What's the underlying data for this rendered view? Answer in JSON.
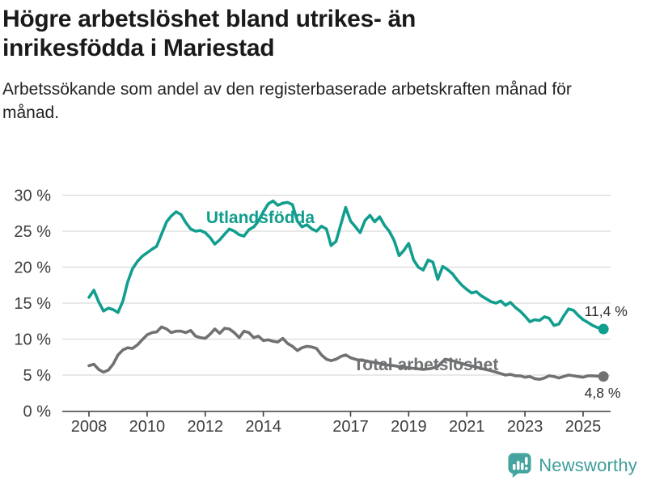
{
  "header": {
    "title_lines": [
      "Högre arbetslöshet bland utrikes- än",
      "inrikesfödda i Mariestad"
    ],
    "subtitle": "Arbetssökande som andel av den registerbaserade arbetskraften månad för månad."
  },
  "chart_data": {
    "type": "line",
    "unit": "%",
    "x_axis": {
      "tick_years": [
        2008,
        2010,
        2012,
        2014,
        2017,
        2019,
        2021,
        2023,
        2025
      ],
      "range": [
        2007.1,
        2025.95
      ]
    },
    "y_axis": {
      "ticks": [
        0,
        5,
        10,
        15,
        20,
        25,
        30
      ],
      "tick_suffix": " %",
      "range": [
        0,
        30
      ],
      "gridlines": true
    },
    "series": [
      {
        "name": "Utlandsfödda",
        "color": "#119e8e",
        "end_label": "11,4 %",
        "points": [
          [
            2008.0,
            15.8
          ],
          [
            2008.17,
            16.8
          ],
          [
            2008.33,
            15.2
          ],
          [
            2008.5,
            13.9
          ],
          [
            2008.67,
            14.3
          ],
          [
            2008.83,
            14.1
          ],
          [
            2009.0,
            13.7
          ],
          [
            2009.17,
            15.3
          ],
          [
            2009.33,
            17.9
          ],
          [
            2009.5,
            19.8
          ],
          [
            2009.67,
            20.8
          ],
          [
            2009.83,
            21.5
          ],
          [
            2010.0,
            22.0
          ],
          [
            2010.17,
            22.5
          ],
          [
            2010.33,
            22.9
          ],
          [
            2010.5,
            24.6
          ],
          [
            2010.67,
            26.3
          ],
          [
            2010.83,
            27.1
          ],
          [
            2011.0,
            27.7
          ],
          [
            2011.17,
            27.3
          ],
          [
            2011.33,
            26.2
          ],
          [
            2011.5,
            25.3
          ],
          [
            2011.67,
            25.0
          ],
          [
            2011.83,
            25.1
          ],
          [
            2012.0,
            24.8
          ],
          [
            2012.17,
            24.1
          ],
          [
            2012.33,
            23.2
          ],
          [
            2012.5,
            23.8
          ],
          [
            2012.67,
            24.6
          ],
          [
            2012.83,
            25.3
          ],
          [
            2013.0,
            25.0
          ],
          [
            2013.17,
            24.5
          ],
          [
            2013.33,
            24.3
          ],
          [
            2013.5,
            25.2
          ],
          [
            2013.67,
            25.6
          ],
          [
            2013.83,
            26.4
          ],
          [
            2014.0,
            27.7
          ],
          [
            2014.17,
            28.8
          ],
          [
            2014.33,
            29.2
          ],
          [
            2014.5,
            28.6
          ],
          [
            2014.67,
            28.9
          ],
          [
            2014.83,
            29.0
          ],
          [
            2015.0,
            28.7
          ],
          [
            2015.17,
            26.4
          ],
          [
            2015.33,
            25.6
          ],
          [
            2015.5,
            25.9
          ],
          [
            2015.67,
            25.3
          ],
          [
            2015.83,
            25.0
          ],
          [
            2016.0,
            25.7
          ],
          [
            2016.17,
            25.3
          ],
          [
            2016.33,
            23.0
          ],
          [
            2016.5,
            23.6
          ],
          [
            2016.67,
            26.0
          ],
          [
            2016.83,
            28.3
          ],
          [
            2017.0,
            26.4
          ],
          [
            2017.17,
            25.6
          ],
          [
            2017.33,
            24.8
          ],
          [
            2017.5,
            26.5
          ],
          [
            2017.67,
            27.2
          ],
          [
            2017.83,
            26.3
          ],
          [
            2018.0,
            27.0
          ],
          [
            2018.17,
            25.8
          ],
          [
            2018.33,
            25.0
          ],
          [
            2018.5,
            23.7
          ],
          [
            2018.67,
            21.6
          ],
          [
            2018.83,
            22.3
          ],
          [
            2019.0,
            23.3
          ],
          [
            2019.17,
            21.0
          ],
          [
            2019.33,
            20.0
          ],
          [
            2019.5,
            19.6
          ],
          [
            2019.67,
            21.0
          ],
          [
            2019.83,
            20.7
          ],
          [
            2020.0,
            18.3
          ],
          [
            2020.17,
            20.1
          ],
          [
            2020.33,
            19.7
          ],
          [
            2020.5,
            19.1
          ],
          [
            2020.67,
            18.2
          ],
          [
            2020.83,
            17.5
          ],
          [
            2021.0,
            16.9
          ],
          [
            2021.17,
            16.4
          ],
          [
            2021.33,
            16.6
          ],
          [
            2021.5,
            16.0
          ],
          [
            2021.67,
            15.6
          ],
          [
            2021.83,
            15.2
          ],
          [
            2022.0,
            15.0
          ],
          [
            2022.17,
            15.3
          ],
          [
            2022.33,
            14.7
          ],
          [
            2022.5,
            15.1
          ],
          [
            2022.67,
            14.4
          ],
          [
            2022.83,
            13.9
          ],
          [
            2023.0,
            13.2
          ],
          [
            2023.17,
            12.4
          ],
          [
            2023.33,
            12.7
          ],
          [
            2023.5,
            12.6
          ],
          [
            2023.67,
            13.1
          ],
          [
            2023.83,
            12.9
          ],
          [
            2024.0,
            11.9
          ],
          [
            2024.17,
            12.1
          ],
          [
            2024.33,
            13.2
          ],
          [
            2024.5,
            14.2
          ],
          [
            2024.67,
            14.0
          ],
          [
            2024.83,
            13.3
          ],
          [
            2025.0,
            12.7
          ],
          [
            2025.17,
            12.3
          ],
          [
            2025.33,
            11.9
          ],
          [
            2025.5,
            11.6
          ],
          [
            2025.7,
            11.4
          ]
        ]
      },
      {
        "name": "Total arbetslöshet",
        "color": "#6f7173",
        "end_label": "4,8 %",
        "points": [
          [
            2008.0,
            6.3
          ],
          [
            2008.17,
            6.5
          ],
          [
            2008.33,
            5.8
          ],
          [
            2008.5,
            5.4
          ],
          [
            2008.67,
            5.7
          ],
          [
            2008.83,
            6.5
          ],
          [
            2009.0,
            7.8
          ],
          [
            2009.17,
            8.5
          ],
          [
            2009.33,
            8.8
          ],
          [
            2009.5,
            8.7
          ],
          [
            2009.67,
            9.2
          ],
          [
            2009.83,
            9.9
          ],
          [
            2010.0,
            10.6
          ],
          [
            2010.17,
            10.9
          ],
          [
            2010.33,
            11.0
          ],
          [
            2010.5,
            11.7
          ],
          [
            2010.67,
            11.4
          ],
          [
            2010.83,
            10.9
          ],
          [
            2011.0,
            11.1
          ],
          [
            2011.17,
            11.1
          ],
          [
            2011.33,
            10.9
          ],
          [
            2011.5,
            11.2
          ],
          [
            2011.67,
            10.4
          ],
          [
            2011.83,
            10.2
          ],
          [
            2012.0,
            10.1
          ],
          [
            2012.17,
            10.7
          ],
          [
            2012.33,
            11.4
          ],
          [
            2012.5,
            10.8
          ],
          [
            2012.67,
            11.5
          ],
          [
            2012.83,
            11.4
          ],
          [
            2013.0,
            10.9
          ],
          [
            2013.17,
            10.2
          ],
          [
            2013.33,
            11.1
          ],
          [
            2013.5,
            10.9
          ],
          [
            2013.67,
            10.2
          ],
          [
            2013.83,
            10.4
          ],
          [
            2014.0,
            9.8
          ],
          [
            2014.17,
            9.9
          ],
          [
            2014.33,
            9.7
          ],
          [
            2014.5,
            9.6
          ],
          [
            2014.67,
            10.1
          ],
          [
            2014.83,
            9.4
          ],
          [
            2015.0,
            9.0
          ],
          [
            2015.17,
            8.4
          ],
          [
            2015.33,
            8.8
          ],
          [
            2015.5,
            9.0
          ],
          [
            2015.67,
            8.9
          ],
          [
            2015.83,
            8.7
          ],
          [
            2016.0,
            7.8
          ],
          [
            2016.17,
            7.2
          ],
          [
            2016.33,
            7.0
          ],
          [
            2016.5,
            7.2
          ],
          [
            2016.67,
            7.6
          ],
          [
            2016.83,
            7.8
          ],
          [
            2017.0,
            7.4
          ],
          [
            2017.25,
            7.1
          ],
          [
            2017.5,
            7.0
          ],
          [
            2017.75,
            6.8
          ],
          [
            2018.0,
            6.6
          ],
          [
            2018.25,
            6.4
          ],
          [
            2018.5,
            6.3
          ],
          [
            2018.75,
            6.1
          ],
          [
            2019.0,
            6.0
          ],
          [
            2019.25,
            5.9
          ],
          [
            2019.5,
            5.8
          ],
          [
            2019.75,
            5.9
          ],
          [
            2020.0,
            6.2
          ],
          [
            2020.25,
            7.2
          ],
          [
            2020.5,
            7.0
          ],
          [
            2020.75,
            6.7
          ],
          [
            2021.0,
            6.4
          ],
          [
            2021.25,
            6.2
          ],
          [
            2021.5,
            5.9
          ],
          [
            2021.75,
            5.7
          ],
          [
            2022.0,
            5.4
          ],
          [
            2022.17,
            5.2
          ],
          [
            2022.33,
            5.0
          ],
          [
            2022.5,
            5.1
          ],
          [
            2022.67,
            4.9
          ],
          [
            2022.83,
            4.9
          ],
          [
            2023.0,
            4.7
          ],
          [
            2023.17,
            4.8
          ],
          [
            2023.33,
            4.5
          ],
          [
            2023.5,
            4.4
          ],
          [
            2023.67,
            4.6
          ],
          [
            2023.83,
            4.9
          ],
          [
            2024.0,
            4.8
          ],
          [
            2024.17,
            4.6
          ],
          [
            2024.33,
            4.8
          ],
          [
            2024.5,
            5.0
          ],
          [
            2024.67,
            4.9
          ],
          [
            2024.83,
            4.8
          ],
          [
            2025.0,
            4.7
          ],
          [
            2025.17,
            4.9
          ],
          [
            2025.33,
            4.9
          ],
          [
            2025.5,
            4.85
          ],
          [
            2025.7,
            4.8
          ]
        ]
      }
    ]
  },
  "footer": {
    "brand": "Newsworthy"
  },
  "colors": {
    "teal": "#119e8e",
    "gray": "#6f7173",
    "grid": "#dbdbdb",
    "axis": "#3f3f3f",
    "tick_label": "#3d3d3d",
    "end_label": "#2e2e2e",
    "logo": "#45a49f"
  }
}
